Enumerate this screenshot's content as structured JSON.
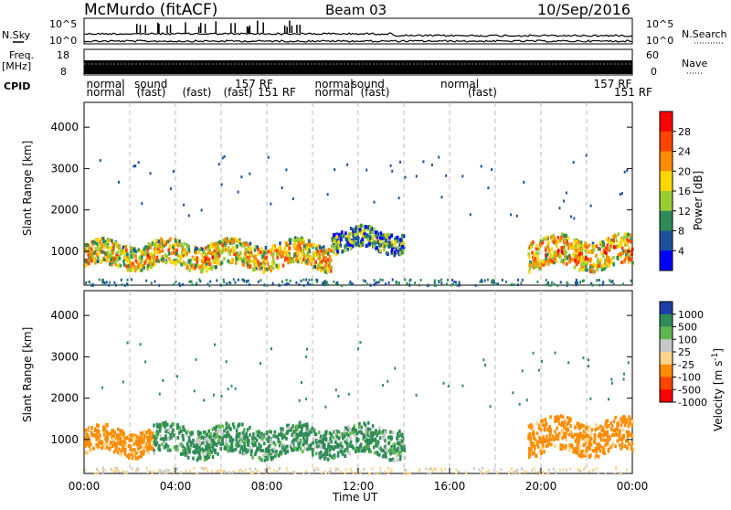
{
  "header": {
    "station": "McMurdo (fitACF)",
    "beam": "Beam 03",
    "date": "10/Sep/2016"
  },
  "left_labels": {
    "nsky": "N.Sky",
    "freq": "Freq.",
    "freq_unit": "[MHz]",
    "cpid": "CPID"
  },
  "right_labels": {
    "nsearch": "N.Search",
    "nave": "Nave"
  },
  "strip_ticks": {
    "noise_left": [
      "10^5",
      "10^0"
    ],
    "noise_right": [
      "10^5",
      "10^0"
    ],
    "freq_left": [
      "18",
      "8"
    ],
    "nave_right": [
      "60",
      "0"
    ]
  },
  "cpid_labels": [
    {
      "text": "normal",
      "t": 0.1,
      "row": 0
    },
    {
      "text": "normal",
      "t": 0.1,
      "row": 1
    },
    {
      "text": "sound",
      "t": 2.2,
      "row": 0
    },
    {
      "text": "(fast)",
      "t": 2.3,
      "row": 1
    },
    {
      "text": "(fast)",
      "t": 4.3,
      "row": 1
    },
    {
      "text": "157 RF",
      "t": 6.6,
      "row": 0
    },
    {
      "text": "(fast)",
      "t": 6.1,
      "row": 1
    },
    {
      "text": "151 RF",
      "t": 7.6,
      "row": 1
    },
    {
      "text": "normal",
      "t": 10.1,
      "row": 0
    },
    {
      "text": "normal",
      "t": 10.1,
      "row": 1
    },
    {
      "text": "sound",
      "t": 11.7,
      "row": 0
    },
    {
      "text": "(fast)",
      "t": 12.1,
      "row": 1
    },
    {
      "text": "normal",
      "t": 15.6,
      "row": 0
    },
    {
      "text": "(fast)",
      "t": 16.8,
      "row": 1
    },
    {
      "text": "157 RF",
      "t": 22.3,
      "row": 0
    },
    {
      "text": "151 RF",
      "t": 23.2,
      "row": 1
    }
  ],
  "chart_data": [
    {
      "type": "heatmap",
      "panel": "power",
      "ylabel": "Slant Range [km]",
      "ylim": [
        180,
        4600
      ],
      "xlim": [
        0,
        24
      ],
      "yticks": [
        "1000",
        "2000",
        "3000",
        "4000"
      ],
      "colorbar_label": "Power [dB]",
      "colorbar_ticks": [
        "28",
        "24",
        "20",
        "16",
        "12",
        "8",
        "4"
      ],
      "colorbar_colors": [
        "#ff0000",
        "#ff4500",
        "#ff8c00",
        "#ffd700",
        "#9acd32",
        "#2e8b57",
        "#1e50a0",
        "#0000ff"
      ],
      "scatter_regions": [
        {
          "t_start": 0.0,
          "t_end": 10.8,
          "range_center": 950,
          "range_width": 600,
          "value": 22
        },
        {
          "t_start": 10.8,
          "t_end": 14.0,
          "range_center": 1300,
          "range_width": 500,
          "value": 14
        },
        {
          "t_start": 19.4,
          "t_end": 24.0,
          "range_center": 1000,
          "range_width": 700,
          "value": 24
        }
      ]
    },
    {
      "type": "heatmap",
      "panel": "velocity",
      "ylabel": "Slant Range [km]",
      "ylim": [
        180,
        4600
      ],
      "xlim": [
        0,
        24
      ],
      "yticks": [
        "1000",
        "2000",
        "3000",
        "4000"
      ],
      "colorbar_label": "Velocity [m s^-1]",
      "colorbar_ticks": [
        "1000",
        "500",
        "100",
        "25",
        "-25",
        "-100",
        "-500",
        "-1000"
      ],
      "colorbar_colors": [
        "#1e3ea8",
        "#2e8b57",
        "#5fb84f",
        "#c8c8c8",
        "#ffd48c",
        "#ff8c00",
        "#ff4500",
        "#ff0000"
      ],
      "scatter_regions": [
        {
          "t_start": 0.0,
          "t_end": 3.0,
          "range_center": 1000,
          "range_width": 600,
          "value": -100
        },
        {
          "t_start": 3.0,
          "t_end": 14.0,
          "range_center": 1000,
          "range_width": 700,
          "value": 100
        },
        {
          "t_start": 19.4,
          "t_end": 24.0,
          "range_center": 1100,
          "range_width": 800,
          "value": -100
        }
      ]
    }
  ],
  "xaxis": {
    "ticks": [
      "00:00",
      "04:00",
      "08:00",
      "12:00",
      "16:00",
      "20:00",
      "00:00"
    ],
    "label": "Time UT"
  }
}
